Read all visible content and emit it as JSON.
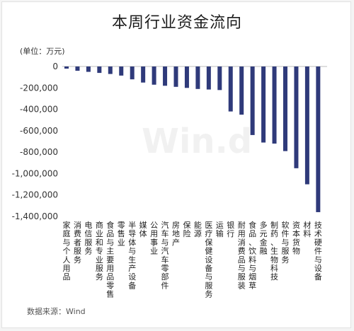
{
  "chart_data": {
    "type": "bar",
    "title": "本周行业资金流向",
    "unit_label": "(单位：万元)",
    "source": "数据来源：Wind",
    "watermark": "Win.d",
    "color": "#2f3a7a",
    "ylim": [
      -1400000,
      0
    ],
    "yticks": [
      "0",
      "-200,000",
      "-400,000",
      "-600,000",
      "-800,000",
      "-1,000,000",
      "-1,200,000",
      "-1,400,000"
    ],
    "categories": [
      "家庭与个人用品",
      "消费者服务",
      "电信服务",
      "商业和专业服务",
      "食品与主要用品零售",
      "零售业",
      "半导体与生产设备",
      "媒体",
      "公用事业",
      "汽车与汽车零部件",
      "房地产",
      "保险",
      "能源",
      "医疗保健设备与服务",
      "运输",
      "银行",
      "耐用消费品与服装",
      "食品、饮料与烟草",
      "多元金融",
      "制药、生物科技",
      "软件与服务",
      "资本货物",
      "材料",
      "技术硬件与设备"
    ],
    "values": [
      -20000,
      -40000,
      -50000,
      -60000,
      -70000,
      -85000,
      -120000,
      -150000,
      -170000,
      -180000,
      -190000,
      -200000,
      -210000,
      -215000,
      -220000,
      -420000,
      -450000,
      -640000,
      -710000,
      -720000,
      -790000,
      -950000,
      -1100000,
      -1360000
    ]
  }
}
